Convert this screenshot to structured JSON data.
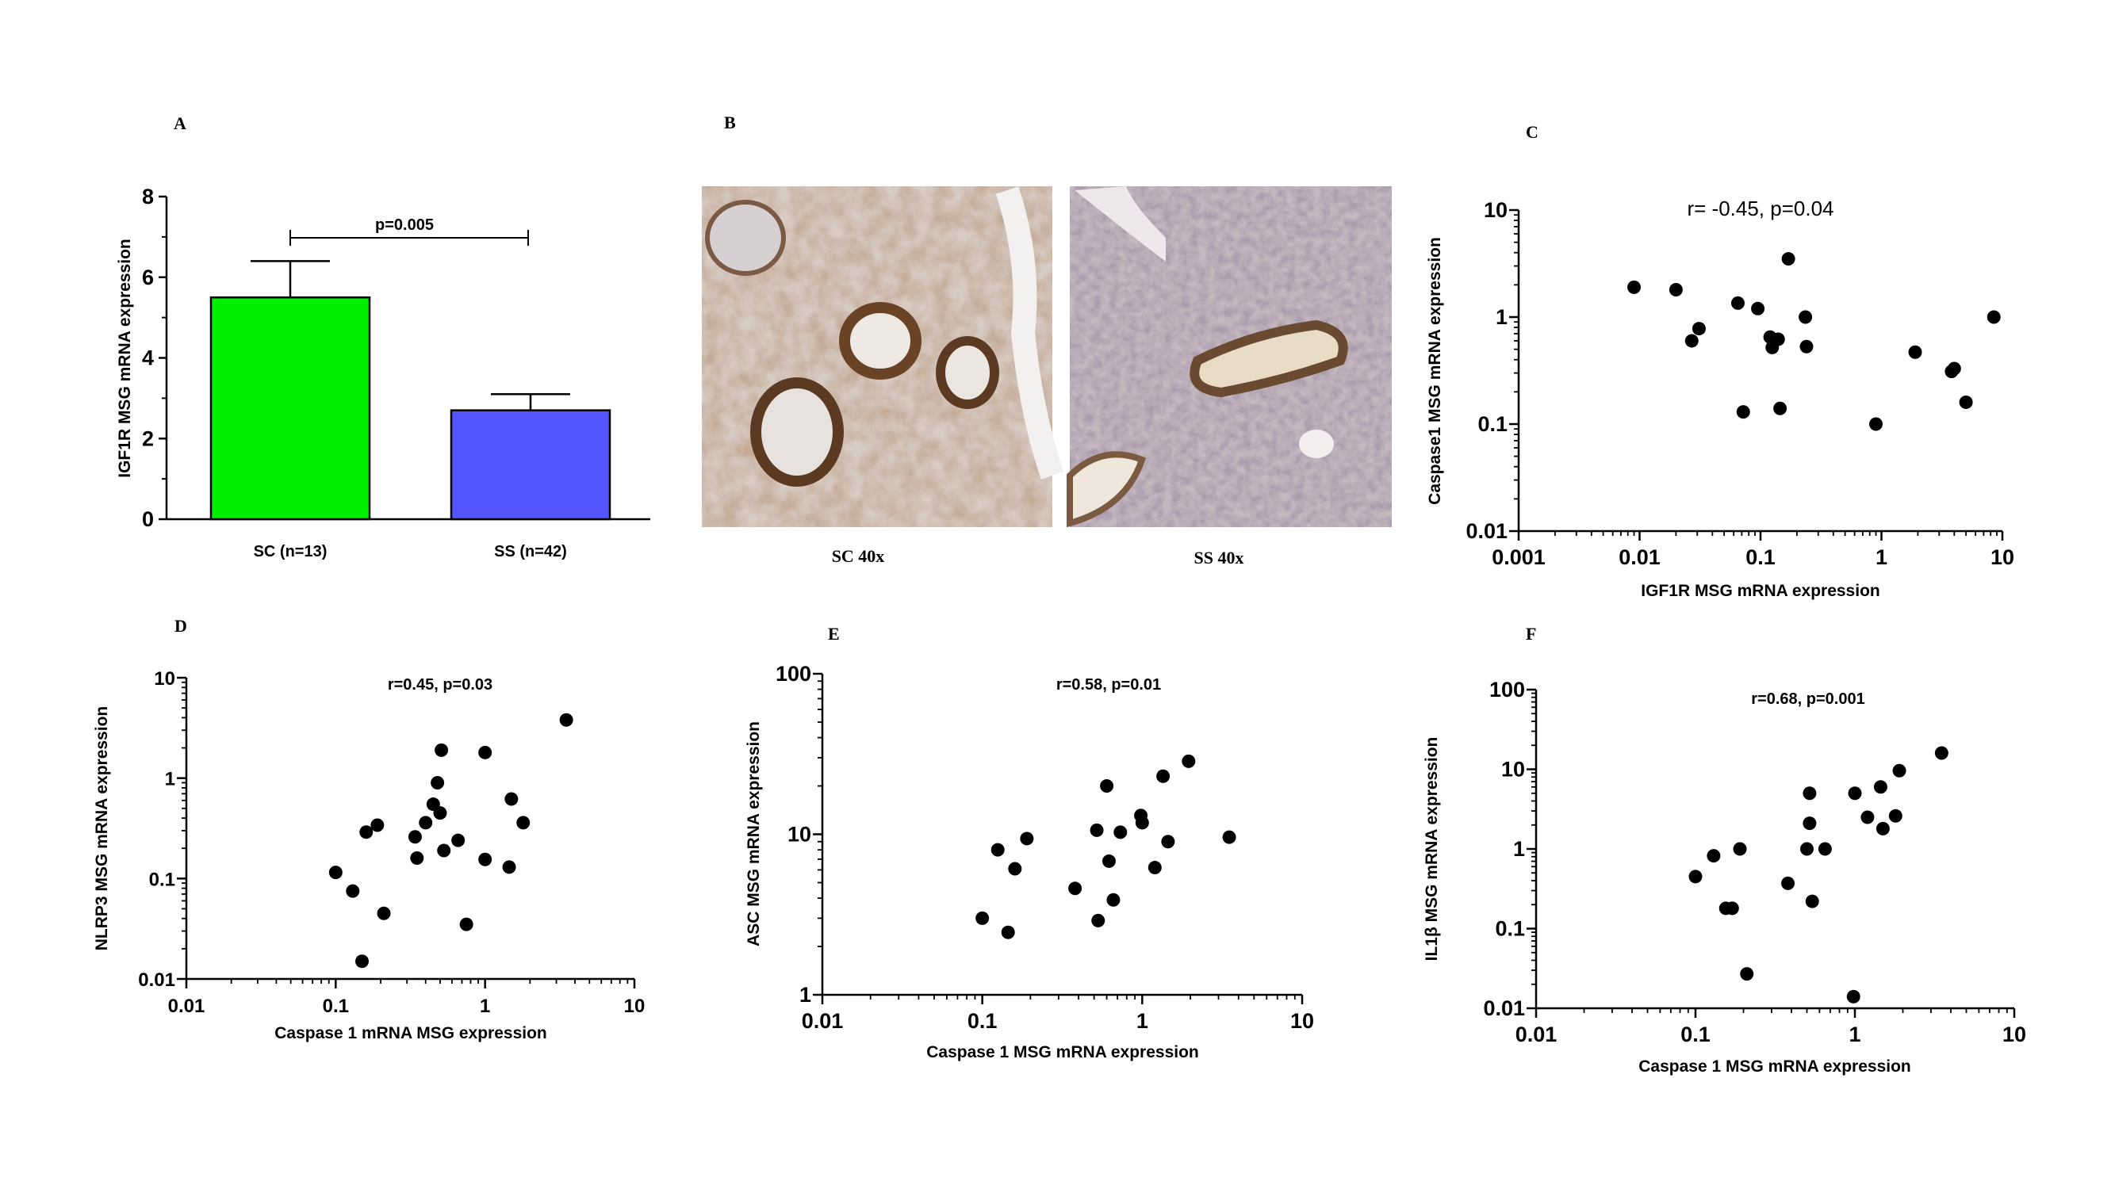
{
  "chart_data": [
    {
      "panel": "A",
      "type": "bar",
      "categories": [
        "SC (n=13)",
        "SS (n=42)"
      ],
      "values": [
        5.5,
        2.7
      ],
      "errors": [
        0.9,
        0.4
      ],
      "colors": [
        "#00ee00",
        "#5555ff"
      ],
      "ylabel": "IGF1R MSG mRNA expression",
      "ylim": [
        0,
        8
      ],
      "yticks": [
        "0",
        "2",
        "4",
        "6",
        "8"
      ],
      "annotation": "p=0.005"
    },
    {
      "panel": "B",
      "type": "image",
      "captions": [
        "SC 40x",
        "SS 40x"
      ]
    },
    {
      "panel": "C",
      "type": "scatter",
      "scale": "log",
      "xlabel": "IGF1R MSG mRNA expression",
      "ylabel": "Caspase1 MSG mRNA expression",
      "xlim": [
        0.001,
        10
      ],
      "ylim": [
        0.01,
        10
      ],
      "xticks": [
        "0.001",
        "0.01",
        "0.1",
        "1",
        "10"
      ],
      "yticks": [
        "0.01",
        "0.1",
        "1",
        "10"
      ],
      "annotation": "r= -0.45, p=0.04",
      "points": [
        [
          0.009,
          1.9
        ],
        [
          0.02,
          1.8
        ],
        [
          0.027,
          0.6
        ],
        [
          0.031,
          0.78
        ],
        [
          0.065,
          1.35
        ],
        [
          0.072,
          0.13
        ],
        [
          0.095,
          1.2
        ],
        [
          0.12,
          0.65
        ],
        [
          0.125,
          0.52
        ],
        [
          0.14,
          0.62
        ],
        [
          0.145,
          0.14
        ],
        [
          0.17,
          3.5
        ],
        [
          0.235,
          1.0
        ],
        [
          0.24,
          0.53
        ],
        [
          0.9,
          0.1
        ],
        [
          1.9,
          0.47
        ],
        [
          3.8,
          0.31
        ],
        [
          4.0,
          0.33
        ],
        [
          5.0,
          0.16
        ],
        [
          8.5,
          1.0
        ]
      ]
    },
    {
      "panel": "D",
      "type": "scatter",
      "scale": "log",
      "xlabel": "Caspase 1 mRNA MSG expression",
      "ylabel": "NLRP3 MSG mRNA expression",
      "xlim": [
        0.01,
        10
      ],
      "ylim": [
        0.01,
        10
      ],
      "xticks": [
        "0.01",
        "0.1",
        "1",
        "10"
      ],
      "yticks": [
        "0.01",
        "0.1",
        "1",
        "10"
      ],
      "annotation": "r=0.45,  p=0.03",
      "points": [
        [
          0.1,
          0.115
        ],
        [
          0.13,
          0.075
        ],
        [
          0.15,
          0.015
        ],
        [
          0.16,
          0.29
        ],
        [
          0.19,
          0.34
        ],
        [
          0.21,
          0.045
        ],
        [
          0.34,
          0.26
        ],
        [
          0.35,
          0.16
        ],
        [
          0.4,
          0.36
        ],
        [
          0.45,
          0.55
        ],
        [
          0.48,
          0.9
        ],
        [
          0.5,
          0.45
        ],
        [
          0.51,
          1.9
        ],
        [
          0.53,
          0.19
        ],
        [
          0.66,
          0.24
        ],
        [
          0.75,
          0.035
        ],
        [
          1.0,
          1.8
        ],
        [
          1.0,
          0.155
        ],
        [
          1.45,
          0.13
        ],
        [
          1.5,
          0.62
        ],
        [
          1.8,
          0.36
        ],
        [
          3.5,
          3.8
        ]
      ]
    },
    {
      "panel": "E",
      "type": "scatter",
      "scale": "log",
      "xlabel": "Caspase 1 MSG mRNA expression",
      "ylabel": "ASC MSG mRNA expression",
      "xlim": [
        0.01,
        10
      ],
      "ylim": [
        1,
        100
      ],
      "xticks": [
        "0.01",
        "0.1",
        "1",
        "10"
      ],
      "yticks": [
        "1",
        "10",
        "100"
      ],
      "annotation": "r=0.58, p=0.01",
      "points": [
        [
          0.1,
          3.0
        ],
        [
          0.125,
          8.0
        ],
        [
          0.145,
          2.45
        ],
        [
          0.16,
          6.1
        ],
        [
          0.19,
          9.4
        ],
        [
          0.38,
          4.6
        ],
        [
          0.52,
          10.6
        ],
        [
          0.53,
          2.9
        ],
        [
          0.6,
          20.0
        ],
        [
          0.62,
          6.8
        ],
        [
          0.66,
          3.9
        ],
        [
          0.73,
          10.3
        ],
        [
          0.98,
          13.1
        ],
        [
          1.0,
          11.8
        ],
        [
          1.2,
          6.2
        ],
        [
          1.35,
          23.0
        ],
        [
          1.45,
          9.0
        ],
        [
          1.95,
          28.5
        ],
        [
          3.5,
          9.6
        ]
      ]
    },
    {
      "panel": "F",
      "type": "scatter",
      "scale": "log",
      "xlabel": "Caspase 1 MSG mRNA expression",
      "ylabel": "IL1β MSG mRNA expression",
      "xlim": [
        0.01,
        10
      ],
      "ylim": [
        0.01,
        100
      ],
      "xticks": [
        "0.01",
        "0.1",
        "1",
        "10"
      ],
      "yticks": [
        "0.01",
        "0.1",
        "1",
        "10",
        "100"
      ],
      "annotation": "r=0.68, p=0.001",
      "points": [
        [
          0.1,
          0.45
        ],
        [
          0.13,
          0.82
        ],
        [
          0.155,
          0.18
        ],
        [
          0.17,
          0.18
        ],
        [
          0.19,
          1.0
        ],
        [
          0.21,
          0.027
        ],
        [
          0.38,
          0.37
        ],
        [
          0.5,
          1.0
        ],
        [
          0.52,
          5.0
        ],
        [
          0.52,
          2.1
        ],
        [
          0.54,
          0.22
        ],
        [
          0.65,
          1.0
        ],
        [
          0.98,
          0.014
        ],
        [
          1.0,
          5.0
        ],
        [
          1.2,
          2.5
        ],
        [
          1.45,
          6.0
        ],
        [
          1.5,
          1.8
        ],
        [
          1.8,
          2.6
        ],
        [
          1.9,
          9.6
        ],
        [
          3.5,
          16.0
        ]
      ]
    }
  ]
}
